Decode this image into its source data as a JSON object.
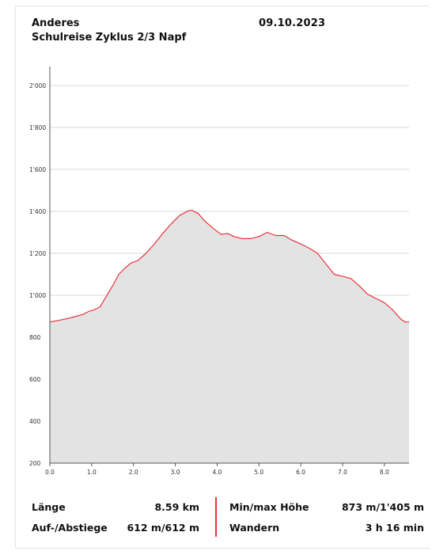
{
  "header": {
    "author": "Anderes",
    "date": "09.10.2023",
    "route": "Schulreise Zyklus 2/3 Napf"
  },
  "stats": {
    "length_label": "Länge",
    "length_value": "8.59 km",
    "ascent_label": "Auf-/Abstiege",
    "ascent_value": "612 m/612 m",
    "minmax_label": "Min/max Höhe",
    "minmax_value": "873 m/1'405 m",
    "hike_label": "Wandern",
    "hike_value": "3 h 16 min"
  },
  "colors": {
    "line": "#e8323a",
    "fill": "#e3e3e3",
    "grid": "#d9d9d9",
    "separator": "#e8323a"
  },
  "chart_data": {
    "type": "area",
    "title": "",
    "xlabel": "",
    "ylabel": "",
    "xlim": [
      0,
      8.59
    ],
    "ylim": [
      200,
      2000
    ],
    "grid": true,
    "x_ticks": [
      0,
      1,
      2,
      3,
      4,
      5,
      6,
      7,
      8
    ],
    "x_tick_labels": [
      "0.0",
      "1.0",
      "2.0",
      "3.0",
      "4.0",
      "5.0",
      "6.0",
      "7.0",
      "8.0"
    ],
    "y_ticks": [
      200,
      400,
      600,
      800,
      1000,
      1200,
      1400,
      1600,
      1800,
      2000
    ],
    "y_tick_labels": [
      "200",
      "400",
      "600",
      "800",
      "1'000",
      "1'200",
      "1'400",
      "1'600",
      "1'800",
      "2'000"
    ],
    "series": [
      {
        "x": [
          0,
          0.2,
          0.4,
          0.6,
          0.8,
          0.95,
          1.05,
          1.2,
          1.35,
          1.5,
          1.65,
          1.8,
          1.95,
          2.1,
          2.3,
          2.5,
          2.7,
          2.9,
          3.1,
          3.3,
          3.4,
          3.55,
          3.7,
          3.9,
          4.1,
          4.25,
          4.4,
          4.6,
          4.8,
          5.0,
          5.2,
          5.4,
          5.6,
          5.8,
          6.0,
          6.2,
          6.4,
          6.6,
          6.8,
          7.0,
          7.2,
          7.4,
          7.6,
          7.8,
          8.0,
          8.2,
          8.4,
          8.5,
          8.59
        ],
        "y": [
          873,
          880,
          888,
          898,
          910,
          925,
          930,
          945,
          995,
          1045,
          1100,
          1130,
          1155,
          1165,
          1200,
          1245,
          1295,
          1340,
          1380,
          1402,
          1405,
          1390,
          1355,
          1320,
          1290,
          1295,
          1280,
          1270,
          1270,
          1280,
          1300,
          1285,
          1285,
          1262,
          1245,
          1225,
          1200,
          1150,
          1100,
          1090,
          1080,
          1045,
          1005,
          985,
          965,
          930,
          885,
          873,
          873
        ]
      }
    ]
  }
}
